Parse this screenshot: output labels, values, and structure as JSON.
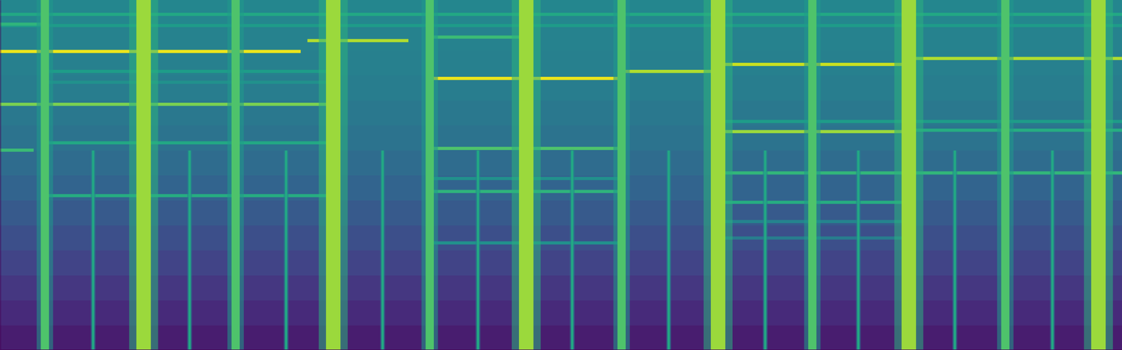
{
  "chart_data": {
    "type": "spectrogram",
    "xlim": [
      0,
      100
    ],
    "ylim": [
      0,
      100
    ],
    "zlim": [
      0,
      1
    ],
    "tick_labels": false,
    "color": "viridis",
    "background": [
      0.08,
      0.12,
      0.16,
      0.2,
      0.24,
      0.28,
      0.32,
      0.35,
      0.38,
      0.4,
      0.42,
      0.43,
      0.44,
      0.46
    ],
    "onsets": [
      {
        "x": 4.0,
        "top": 100,
        "level": 0.72
      },
      {
        "x": 8.3,
        "top": 57,
        "level": 0.6
      },
      {
        "x": 12.8,
        "top": 100,
        "level": 0.85
      },
      {
        "x": 16.9,
        "top": 57,
        "level": 0.6
      },
      {
        "x": 21.0,
        "top": 100,
        "level": 0.72
      },
      {
        "x": 25.5,
        "top": 57,
        "level": 0.6
      },
      {
        "x": 29.7,
        "top": 100,
        "level": 0.85
      },
      {
        "x": 34.1,
        "top": 57,
        "level": 0.6
      },
      {
        "x": 38.3,
        "top": 100,
        "level": 0.72
      },
      {
        "x": 42.6,
        "top": 57,
        "level": 0.6
      },
      {
        "x": 46.9,
        "top": 100,
        "level": 0.85
      },
      {
        "x": 51.0,
        "top": 57,
        "level": 0.6
      },
      {
        "x": 55.4,
        "top": 100,
        "level": 0.72
      },
      {
        "x": 59.6,
        "top": 57,
        "level": 0.6
      },
      {
        "x": 64.0,
        "top": 100,
        "level": 0.85
      },
      {
        "x": 68.2,
        "top": 57,
        "level": 0.6
      },
      {
        "x": 72.4,
        "top": 100,
        "level": 0.72
      },
      {
        "x": 76.5,
        "top": 57,
        "level": 0.6
      },
      {
        "x": 81.0,
        "top": 100,
        "level": 0.85
      },
      {
        "x": 85.1,
        "top": 57,
        "level": 0.6
      },
      {
        "x": 89.6,
        "top": 100,
        "level": 0.72
      },
      {
        "x": 93.8,
        "top": 57,
        "level": 0.6
      },
      {
        "x": 97.9,
        "top": 100,
        "level": 0.85
      }
    ],
    "tones": [
      {
        "start": 0,
        "end": 26.8,
        "y": 85.3,
        "level": 0.97
      },
      {
        "start": 27.4,
        "end": 36.4,
        "y": 88.4,
        "level": 0.88
      },
      {
        "start": 38.3,
        "end": 55.5,
        "y": 77.6,
        "level": 0.97
      },
      {
        "start": 55.5,
        "end": 63.8,
        "y": 79.6,
        "level": 0.88
      },
      {
        "start": 63.8,
        "end": 81.0,
        "y": 81.6,
        "level": 0.92
      },
      {
        "start": 81.0,
        "end": 100,
        "y": 83.3,
        "level": 0.88
      },
      {
        "start": 0,
        "end": 29.3,
        "y": 70.2,
        "level": 0.8
      },
      {
        "start": 64.0,
        "end": 81.0,
        "y": 62.4,
        "level": 0.85
      },
      {
        "start": 81.0,
        "end": 100,
        "y": 62.8,
        "level": 0.62
      },
      {
        "start": 0,
        "end": 3.0,
        "y": 57.1,
        "level": 0.68
      },
      {
        "start": 38.3,
        "end": 55.4,
        "y": 57.6,
        "level": 0.72
      },
      {
        "start": 4.0,
        "end": 29.3,
        "y": 59.2,
        "level": 0.6
      },
      {
        "start": 4.0,
        "end": 29.3,
        "y": 44.1,
        "level": 0.62
      },
      {
        "start": 38.3,
        "end": 55.4,
        "y": 45.3,
        "level": 0.65
      },
      {
        "start": 64.0,
        "end": 100,
        "y": 50.6,
        "level": 0.66
      },
      {
        "start": 64.0,
        "end": 81.0,
        "y": 42.2,
        "level": 0.62
      },
      {
        "start": 38.3,
        "end": 55.4,
        "y": 30.6,
        "level": 0.5
      },
      {
        "start": 0,
        "end": 100,
        "y": 95.9,
        "level": 0.6
      },
      {
        "start": 0,
        "end": 100,
        "y": 92.7,
        "level": 0.55
      },
      {
        "start": 38.3,
        "end": 46.9,
        "y": 89.4,
        "level": 0.68
      },
      {
        "start": 4.0,
        "end": 29.3,
        "y": 79.6,
        "level": 0.55
      },
      {
        "start": 4.0,
        "end": 29.3,
        "y": 76.5,
        "level": 0.5
      },
      {
        "start": 64.0,
        "end": 100,
        "y": 65.3,
        "level": 0.55
      },
      {
        "start": 0,
        "end": 3.8,
        "y": 93.1,
        "level": 0.65
      },
      {
        "start": 64.0,
        "end": 81.0,
        "y": 36.7,
        "level": 0.45
      },
      {
        "start": 38.3,
        "end": 55.4,
        "y": 49.0,
        "level": 0.5
      },
      {
        "start": 64.0,
        "end": 81.0,
        "y": 32.0,
        "level": 0.42
      }
    ]
  }
}
